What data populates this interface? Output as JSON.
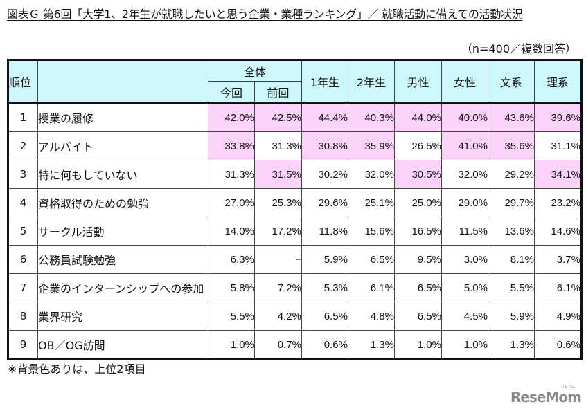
{
  "title": "図表Ｇ 第6回「大学1、2年生が就職したいと思う企業・業種ランキング」／ 就職活動に備えての活動状況",
  "sample_note": "（n=400／複数回答）",
  "table": {
    "header": {
      "rank": "順位",
      "item": "",
      "overall_group": "全体",
      "current": "今回",
      "previous": "前回",
      "year1": "1年生",
      "year2": "2年生",
      "male": "男性",
      "female": "女性",
      "humanities": "文系",
      "science": "理系"
    },
    "rows": [
      {
        "rank": "1",
        "item": "授業の履修",
        "values": [
          "42.0%",
          "42.5%",
          "44.4%",
          "40.3%",
          "44.0%",
          "40.0%",
          "43.6%",
          "39.6%"
        ],
        "highlight": [
          true,
          true,
          true,
          true,
          true,
          true,
          true,
          true
        ]
      },
      {
        "rank": "2",
        "item": "アルバイト",
        "values": [
          "33.8%",
          "31.3%",
          "30.8%",
          "35.9%",
          "26.5%",
          "41.0%",
          "35.6%",
          "31.1%"
        ],
        "highlight": [
          true,
          false,
          true,
          true,
          false,
          true,
          true,
          false
        ]
      },
      {
        "rank": "3",
        "item": "特に何もしていない",
        "values": [
          "31.3%",
          "31.5%",
          "30.2%",
          "32.0%",
          "30.5%",
          "32.0%",
          "29.2%",
          "34.1%"
        ],
        "highlight": [
          false,
          true,
          false,
          false,
          true,
          false,
          false,
          true
        ]
      },
      {
        "rank": "4",
        "item": "資格取得のための勉強",
        "values": [
          "27.0%",
          "25.3%",
          "29.6%",
          "25.1%",
          "25.0%",
          "29.0%",
          "29.7%",
          "23.2%"
        ],
        "highlight": [
          false,
          false,
          false,
          false,
          false,
          false,
          false,
          false
        ]
      },
      {
        "rank": "5",
        "item": "サークル活動",
        "values": [
          "14.0%",
          "17.2%",
          "11.8%",
          "15.6%",
          "16.5%",
          "11.5%",
          "13.6%",
          "14.6%"
        ],
        "highlight": [
          false,
          false,
          false,
          false,
          false,
          false,
          false,
          false
        ]
      },
      {
        "rank": "6",
        "item": "公務員試験勉強",
        "values": [
          "6.3%",
          "−",
          "5.9%",
          "6.5%",
          "9.5%",
          "3.0%",
          "8.1%",
          "3.7%"
        ],
        "highlight": [
          false,
          false,
          false,
          false,
          false,
          false,
          false,
          false
        ]
      },
      {
        "rank": "7",
        "item": "企業のインターンシップへの参加",
        "values": [
          "5.8%",
          "7.2%",
          "5.3%",
          "6.1%",
          "6.5%",
          "5.0%",
          "5.5%",
          "6.1%"
        ],
        "highlight": [
          false,
          false,
          false,
          false,
          false,
          false,
          false,
          false
        ]
      },
      {
        "rank": "8",
        "item": "業界研究",
        "values": [
          "5.5%",
          "4.2%",
          "6.5%",
          "4.8%",
          "6.5%",
          "4.5%",
          "5.9%",
          "4.9%"
        ],
        "highlight": [
          false,
          false,
          false,
          false,
          false,
          false,
          false,
          false
        ]
      },
      {
        "rank": "9",
        "item": "OB／OG訪問",
        "values": [
          "1.0%",
          "0.7%",
          "0.6%",
          "1.3%",
          "1.0%",
          "1.0%",
          "1.3%",
          "0.6%"
        ],
        "highlight": [
          false,
          false,
          false,
          false,
          false,
          false,
          false,
          false
        ]
      }
    ]
  },
  "footnote": "※背景色ありは、上位2項目",
  "logo": {
    "text": "ReseMom",
    "sub": "リセマム"
  },
  "colors": {
    "header_bg": "#ccf7fb",
    "highlight_bg": "#fcd2fa",
    "logo": "#8a8a8a"
  }
}
